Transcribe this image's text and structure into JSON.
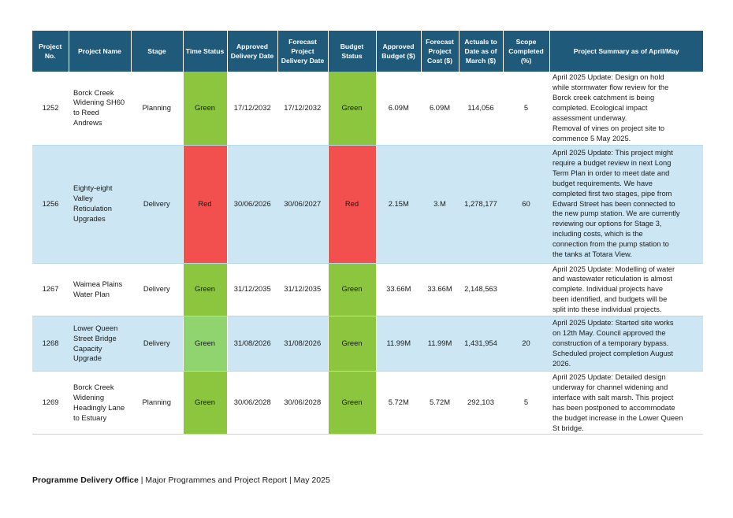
{
  "columns": [
    "Project No.",
    "Project Name",
    "Stage",
    "Time Status",
    "Approved Delivery Date",
    "Forecast Project Delivery Date",
    "Budget Status",
    "Approved Budget ($)",
    "Forecast Project Cost ($)",
    "Actuals to Date as of March ($)",
    "Scope Completed (%)",
    "Project Summary as of April/May"
  ],
  "rows": [
    {
      "no": "1252",
      "name": "Borck Creek Widening SH60 to Reed Andrews",
      "stage": "Planning",
      "time_status": "Green",
      "approved_date": "17/12/2032",
      "forecast_date": "17/12/2032",
      "budget_status": "Green",
      "approved_budget": "6.09M",
      "forecast_cost": "6.09M",
      "actuals": "114,056",
      "scope": "5",
      "summary_lines": [
        "April 2025 Update: Design on hold",
        "while stormwater flow review for the",
        "Borck creek catchment is being",
        "completed. Ecological impact",
        "assessment underway.",
        "Removal of vines on project site to",
        "commence 5 May 2025."
      ]
    },
    {
      "no": "1256",
      "name": "Eighty-eight Valley Reticulation Upgrades",
      "stage": "Delivery",
      "time_status": "Red",
      "approved_date": "30/06/2026",
      "forecast_date": "30/06/2027",
      "budget_status": "Red",
      "approved_budget": "2.15M",
      "forecast_cost": "3.M",
      "actuals": "1,278,177",
      "scope": "60",
      "summary_lines": [
        "April 2025 Update: This project might",
        "require a budget review in next Long",
        "Term Plan in order to meet date and",
        "budget requirements. We have",
        "completed first two stages, pipe from",
        "Edward Street has been connected to",
        "the new pump station. We are currently",
        "reviewing our options for Stage 3,",
        "including costs, which is the",
        "connection from the pump station to",
        "the tanks at Totara View."
      ]
    },
    {
      "no": "1267",
      "name": "Waimea Plains Water Plan",
      "stage": "Delivery",
      "time_status": "Green",
      "approved_date": "31/12/2035",
      "forecast_date": "31/12/2035",
      "budget_status": "Green",
      "approved_budget": "33.66M",
      "forecast_cost": "33.66M",
      "actuals": "2,148,563",
      "scope": "",
      "summary_lines": [
        "April 2025 Update: Modelling of water",
        "and wastewater reticulation is almost",
        "complete. Individual projects have",
        "been identified, and budgets will be",
        "split into these individual projects."
      ]
    },
    {
      "no": "1268",
      "name": "Lower Queen Street Bridge Capacity Upgrade",
      "stage": "Delivery",
      "time_status": "Green",
      "approved_date": "31/08/2026",
      "forecast_date": "31/08/2026",
      "budget_status": "Green",
      "approved_budget": "11.99M",
      "forecast_cost": "11.99M",
      "actuals": "1,431,954",
      "scope": "20",
      "summary_lines": [
        "April 2025 Update: Started site works",
        "on 12th May. Council approved the",
        "construction of a temporary bypass.",
        "Scheduled project completion August",
        "2026."
      ]
    },
    {
      "no": "1269",
      "name": "Borck Creek Widening Headingly Lane to Estuary",
      "stage": "Planning",
      "time_status": "Green",
      "approved_date": "30/06/2028",
      "forecast_date": "30/06/2028",
      "budget_status": "Green",
      "approved_budget": "5.72M",
      "forecast_cost": "5.72M",
      "actuals": "292,103",
      "scope": "5",
      "summary_lines": [
        "April 2025 Update: Detailed design",
        "underway for channel widening and",
        "interface with salt marsh. This project",
        "has been postponed to accommodate",
        "the budget increase in the Lower Queen",
        "St bridge."
      ]
    }
  ],
  "status_colors": {
    "Green": "#8cc63f",
    "Red": "#f24f4f"
  },
  "footer": {
    "office": "Programme Delivery Office",
    "rest": " | Major Programmes and Project Report | May 2025"
  }
}
